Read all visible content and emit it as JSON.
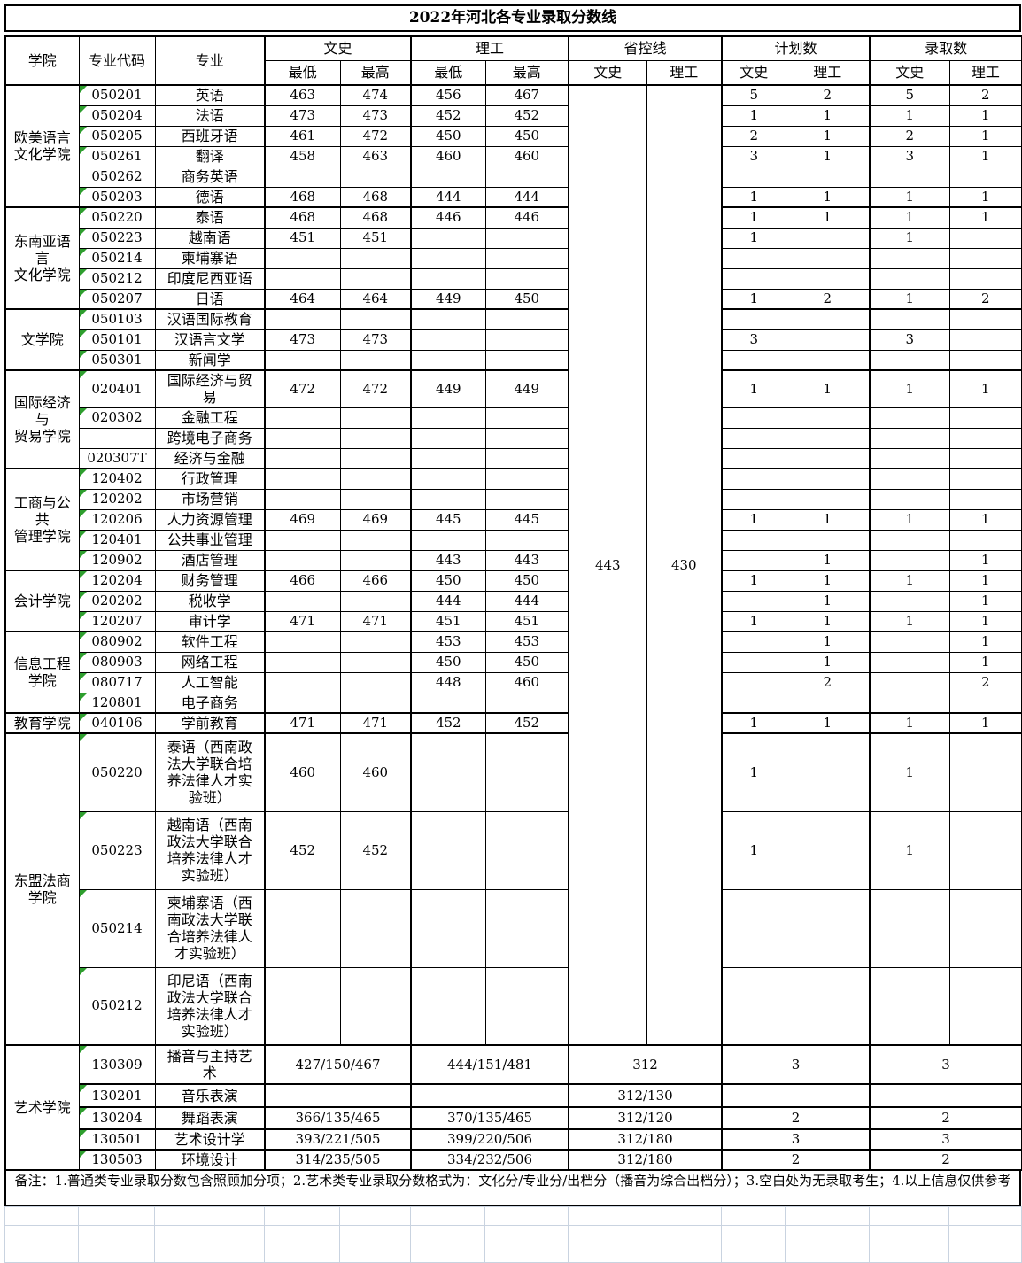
{
  "title": "2022年河北各专业录取分数线",
  "note": "备注：1.普通类专业录取分数包含照顾加分项；2.艺术类专业录取分数格式为：文化分/专业分/出档分（播音为综合出档分）；3.空白处为无录取考生；4.以上信息仅供参考",
  "colors": {
    "marker_green": "#2e9e2e",
    "empty_grid_line": "#c9d3e0"
  },
  "header": {
    "college": "学院",
    "code": "专业代码",
    "major": "专业",
    "wenshi": "文史",
    "ligong": "理工",
    "control_line": "省控线",
    "plan": "计划数",
    "admit": "录取数",
    "min": "最低",
    "max": "最高",
    "sub_wenshi": "文史",
    "sub_ligong": "理工"
  },
  "control_line": {
    "wenshi": "443",
    "ligong": "430"
  },
  "colleges": [
    {
      "name": "欧美语言\n文化学院",
      "rows": [
        {
          "code": "050201",
          "marker": true,
          "major": "英语",
          "ws_min": "463",
          "ws_max": "474",
          "lg_min": "456",
          "lg_max": "467",
          "plan_ws": "5",
          "plan_lg": "2",
          "adm_ws": "5",
          "adm_lg": "2"
        },
        {
          "code": "050204",
          "marker": true,
          "major": "法语",
          "ws_min": "473",
          "ws_max": "473",
          "lg_min": "452",
          "lg_max": "452",
          "plan_ws": "1",
          "plan_lg": "1",
          "adm_ws": "1",
          "adm_lg": "1"
        },
        {
          "code": "050205",
          "marker": true,
          "major": "西班牙语",
          "ws_min": "461",
          "ws_max": "472",
          "lg_min": "450",
          "lg_max": "450",
          "plan_ws": "2",
          "plan_lg": "1",
          "adm_ws": "2",
          "adm_lg": "1"
        },
        {
          "code": "050261",
          "marker": true,
          "major": "翻译",
          "ws_min": "458",
          "ws_max": "463",
          "lg_min": "460",
          "lg_max": "460",
          "plan_ws": "3",
          "plan_lg": "1",
          "adm_ws": "3",
          "adm_lg": "1"
        },
        {
          "code": "050262",
          "marker": false,
          "major": "商务英语",
          "ws_min": "",
          "ws_max": "",
          "lg_min": "",
          "lg_max": "",
          "plan_ws": "",
          "plan_lg": "",
          "adm_ws": "",
          "adm_lg": ""
        },
        {
          "code": "050203",
          "marker": true,
          "major": "德语",
          "ws_min": "468",
          "ws_max": "468",
          "lg_min": "444",
          "lg_max": "444",
          "plan_ws": "1",
          "plan_lg": "1",
          "adm_ws": "1",
          "adm_lg": "1"
        }
      ]
    },
    {
      "name": "东南亚语\n言\n文化学院",
      "rows": [
        {
          "code": "050220",
          "marker": true,
          "major": "泰语",
          "ws_min": "468",
          "ws_max": "468",
          "lg_min": "446",
          "lg_max": "446",
          "plan_ws": "1",
          "plan_lg": "1",
          "adm_ws": "1",
          "adm_lg": "1"
        },
        {
          "code": "050223",
          "marker": true,
          "major": "越南语",
          "ws_min": "451",
          "ws_max": "451",
          "lg_min": "",
          "lg_max": "",
          "plan_ws": "1",
          "plan_lg": "",
          "adm_ws": "1",
          "adm_lg": ""
        },
        {
          "code": "050214",
          "marker": true,
          "major": "柬埔寨语",
          "ws_min": "",
          "ws_max": "",
          "lg_min": "",
          "lg_max": "",
          "plan_ws": "",
          "plan_lg": "",
          "adm_ws": "",
          "adm_lg": ""
        },
        {
          "code": "050212",
          "marker": true,
          "major": "印度尼西亚语",
          "ws_min": "",
          "ws_max": "",
          "lg_min": "",
          "lg_max": "",
          "plan_ws": "",
          "plan_lg": "",
          "adm_ws": "",
          "adm_lg": ""
        },
        {
          "code": "050207",
          "marker": true,
          "major": "日语",
          "ws_min": "464",
          "ws_max": "464",
          "lg_min": "449",
          "lg_max": "450",
          "plan_ws": "1",
          "plan_lg": "2",
          "adm_ws": "1",
          "adm_lg": "2"
        }
      ]
    },
    {
      "name": "文学院",
      "rows": [
        {
          "code": "050103",
          "marker": true,
          "major": "汉语国际教育",
          "ws_min": "",
          "ws_max": "",
          "lg_min": "",
          "lg_max": "",
          "plan_ws": "",
          "plan_lg": "",
          "adm_ws": "",
          "adm_lg": ""
        },
        {
          "code": "050101",
          "marker": true,
          "major": "汉语言文学",
          "ws_min": "473",
          "ws_max": "473",
          "lg_min": "",
          "lg_max": "",
          "plan_ws": "3",
          "plan_lg": "",
          "adm_ws": "3",
          "adm_lg": ""
        },
        {
          "code": "050301",
          "marker": true,
          "major": "新闻学",
          "ws_min": "",
          "ws_max": "",
          "lg_min": "",
          "lg_max": "",
          "plan_ws": "",
          "plan_lg": "",
          "adm_ws": "",
          "adm_lg": ""
        }
      ]
    },
    {
      "name": "国际经济\n与\n贸易学院",
      "rows": [
        {
          "code": "020401",
          "marker": true,
          "tall": true,
          "major": "国际经济与贸\n易",
          "ws_min": "472",
          "ws_max": "472",
          "lg_min": "449",
          "lg_max": "449",
          "plan_ws": "1",
          "plan_lg": "1",
          "adm_ws": "1",
          "adm_lg": "1"
        },
        {
          "code": "020302",
          "marker": true,
          "major": "金融工程",
          "ws_min": "",
          "ws_max": "",
          "lg_min": "",
          "lg_max": "",
          "plan_ws": "",
          "plan_lg": "",
          "adm_ws": "",
          "adm_lg": ""
        },
        {
          "code": "",
          "marker": false,
          "major": "跨境电子商务",
          "ws_min": "",
          "ws_max": "",
          "lg_min": "",
          "lg_max": "",
          "plan_ws": "",
          "plan_lg": "",
          "adm_ws": "",
          "adm_lg": ""
        },
        {
          "code": "020307T",
          "marker": false,
          "major": "经济与金融",
          "ws_min": "",
          "ws_max": "",
          "lg_min": "",
          "lg_max": "",
          "plan_ws": "",
          "plan_lg": "",
          "adm_ws": "",
          "adm_lg": ""
        }
      ]
    },
    {
      "name": "工商与公\n共\n管理学院",
      "rows": [
        {
          "code": "120402",
          "marker": true,
          "major": "行政管理",
          "ws_min": "",
          "ws_max": "",
          "lg_min": "",
          "lg_max": "",
          "plan_ws": "",
          "plan_lg": "",
          "adm_ws": "",
          "adm_lg": ""
        },
        {
          "code": "120202",
          "marker": true,
          "major": "市场营销",
          "ws_min": "",
          "ws_max": "",
          "lg_min": "",
          "lg_max": "",
          "plan_ws": "",
          "plan_lg": "",
          "adm_ws": "",
          "adm_lg": ""
        },
        {
          "code": "120206",
          "marker": true,
          "major": "人力资源管理",
          "ws_min": "469",
          "ws_max": "469",
          "lg_min": "445",
          "lg_max": "445",
          "plan_ws": "1",
          "plan_lg": "1",
          "adm_ws": "1",
          "adm_lg": "1"
        },
        {
          "code": "120401",
          "marker": true,
          "major": "公共事业管理",
          "ws_min": "",
          "ws_max": "",
          "lg_min": "",
          "lg_max": "",
          "plan_ws": "",
          "plan_lg": "",
          "adm_ws": "",
          "adm_lg": ""
        },
        {
          "code": "120902",
          "marker": true,
          "major": "酒店管理",
          "ws_min": "",
          "ws_max": "",
          "lg_min": "443",
          "lg_max": "443",
          "plan_ws": "",
          "plan_lg": "1",
          "adm_ws": "",
          "adm_lg": "1"
        }
      ]
    },
    {
      "name": "会计学院",
      "rows": [
        {
          "code": "120204",
          "marker": true,
          "major": "财务管理",
          "ws_min": "466",
          "ws_max": "466",
          "lg_min": "450",
          "lg_max": "450",
          "plan_ws": "1",
          "plan_lg": "1",
          "adm_ws": "1",
          "adm_lg": "1"
        },
        {
          "code": "020202",
          "marker": true,
          "major": "税收学",
          "ws_min": "",
          "ws_max": "",
          "lg_min": "444",
          "lg_max": "444",
          "plan_ws": "",
          "plan_lg": "1",
          "adm_ws": "",
          "adm_lg": "1"
        },
        {
          "code": "120207",
          "marker": true,
          "major": "审计学",
          "ws_min": "471",
          "ws_max": "471",
          "lg_min": "451",
          "lg_max": "451",
          "plan_ws": "1",
          "plan_lg": "1",
          "adm_ws": "1",
          "adm_lg": "1"
        }
      ]
    },
    {
      "name": "信息工程\n学院",
      "rows": [
        {
          "code": "080902",
          "marker": true,
          "major": "软件工程",
          "ws_min": "",
          "ws_max": "",
          "lg_min": "453",
          "lg_max": "453",
          "plan_ws": "",
          "plan_lg": "1",
          "adm_ws": "",
          "adm_lg": "1"
        },
        {
          "code": "080903",
          "marker": true,
          "major": "网络工程",
          "ws_min": "",
          "ws_max": "",
          "lg_min": "450",
          "lg_max": "450",
          "plan_ws": "",
          "plan_lg": "1",
          "adm_ws": "",
          "adm_lg": "1"
        },
        {
          "code": "080717",
          "marker": true,
          "major": "人工智能",
          "ws_min": "",
          "ws_max": "",
          "lg_min": "448",
          "lg_max": "460",
          "plan_ws": "",
          "plan_lg": "2",
          "adm_ws": "",
          "adm_lg": "2"
        },
        {
          "code": "120801",
          "marker": true,
          "major": "电子商务",
          "ws_min": "",
          "ws_max": "",
          "lg_min": "",
          "lg_max": "",
          "plan_ws": "",
          "plan_lg": "",
          "adm_ws": "",
          "adm_lg": ""
        }
      ]
    },
    {
      "name": "教育学院",
      "rows": [
        {
          "code": "040106",
          "marker": true,
          "major": "学前教育",
          "ws_min": "471",
          "ws_max": "471",
          "lg_min": "452",
          "lg_max": "452",
          "plan_ws": "1",
          "plan_lg": "1",
          "adm_ws": "1",
          "adm_lg": "1"
        }
      ]
    },
    {
      "name": "东盟法商\n学院",
      "asean": true,
      "rows": [
        {
          "code": "050220",
          "marker": true,
          "major": "泰语（西南政\n法大学联合培\n养法律人才实\n验班）",
          "ws_min": "460",
          "ws_max": "460",
          "lg_min": "",
          "lg_max": "",
          "plan_ws": "1",
          "plan_lg": "",
          "adm_ws": "1",
          "adm_lg": ""
        },
        {
          "code": "050223",
          "marker": true,
          "major": "越南语（西南\n政法大学联合\n培养法律人才\n实验班）",
          "ws_min": "452",
          "ws_max": "452",
          "lg_min": "",
          "lg_max": "",
          "plan_ws": "1",
          "plan_lg": "",
          "adm_ws": "1",
          "adm_lg": ""
        },
        {
          "code": "050214",
          "marker": true,
          "major": "柬埔寨语（西\n南政法大学联\n合培养法律人\n才实验班）",
          "ws_min": "",
          "ws_max": "",
          "lg_min": "",
          "lg_max": "",
          "plan_ws": "",
          "plan_lg": "",
          "adm_ws": "",
          "adm_lg": ""
        },
        {
          "code": "050212",
          "marker": true,
          "major": "印尼语（西南\n政法大学联合\n培养法律人才\n实验班）",
          "ws_min": "",
          "ws_max": "",
          "lg_min": "",
          "lg_max": "",
          "plan_ws": "",
          "plan_lg": "",
          "adm_ws": "",
          "adm_lg": ""
        }
      ]
    },
    {
      "name": "艺术学院",
      "art": true,
      "rows": [
        {
          "code": "130309",
          "marker": true,
          "major": "播音与主持艺\n术",
          "ws": "427/150/467",
          "lg": "444/151/481",
          "line": "312",
          "plan": "3",
          "adm": "3"
        },
        {
          "code": "130201",
          "marker": true,
          "major": "音乐表演",
          "ws": "",
          "lg": "",
          "line": "312/130",
          "plan": "",
          "adm": ""
        },
        {
          "code": "130204",
          "marker": true,
          "major": "舞蹈表演",
          "ws": "366/135/465",
          "lg": "370/135/465",
          "line": "312/120",
          "plan": "2",
          "adm": "2"
        },
        {
          "code": "130501",
          "marker": true,
          "major": "艺术设计学",
          "ws": "393/221/505",
          "lg": "399/220/506",
          "line": "312/180",
          "plan": "3",
          "adm": "3"
        },
        {
          "code": "130503",
          "marker": true,
          "major": "环境设计",
          "ws": "314/235/505",
          "lg": "334/232/506",
          "line": "312/180",
          "plan": "2",
          "adm": "2"
        }
      ]
    }
  ]
}
